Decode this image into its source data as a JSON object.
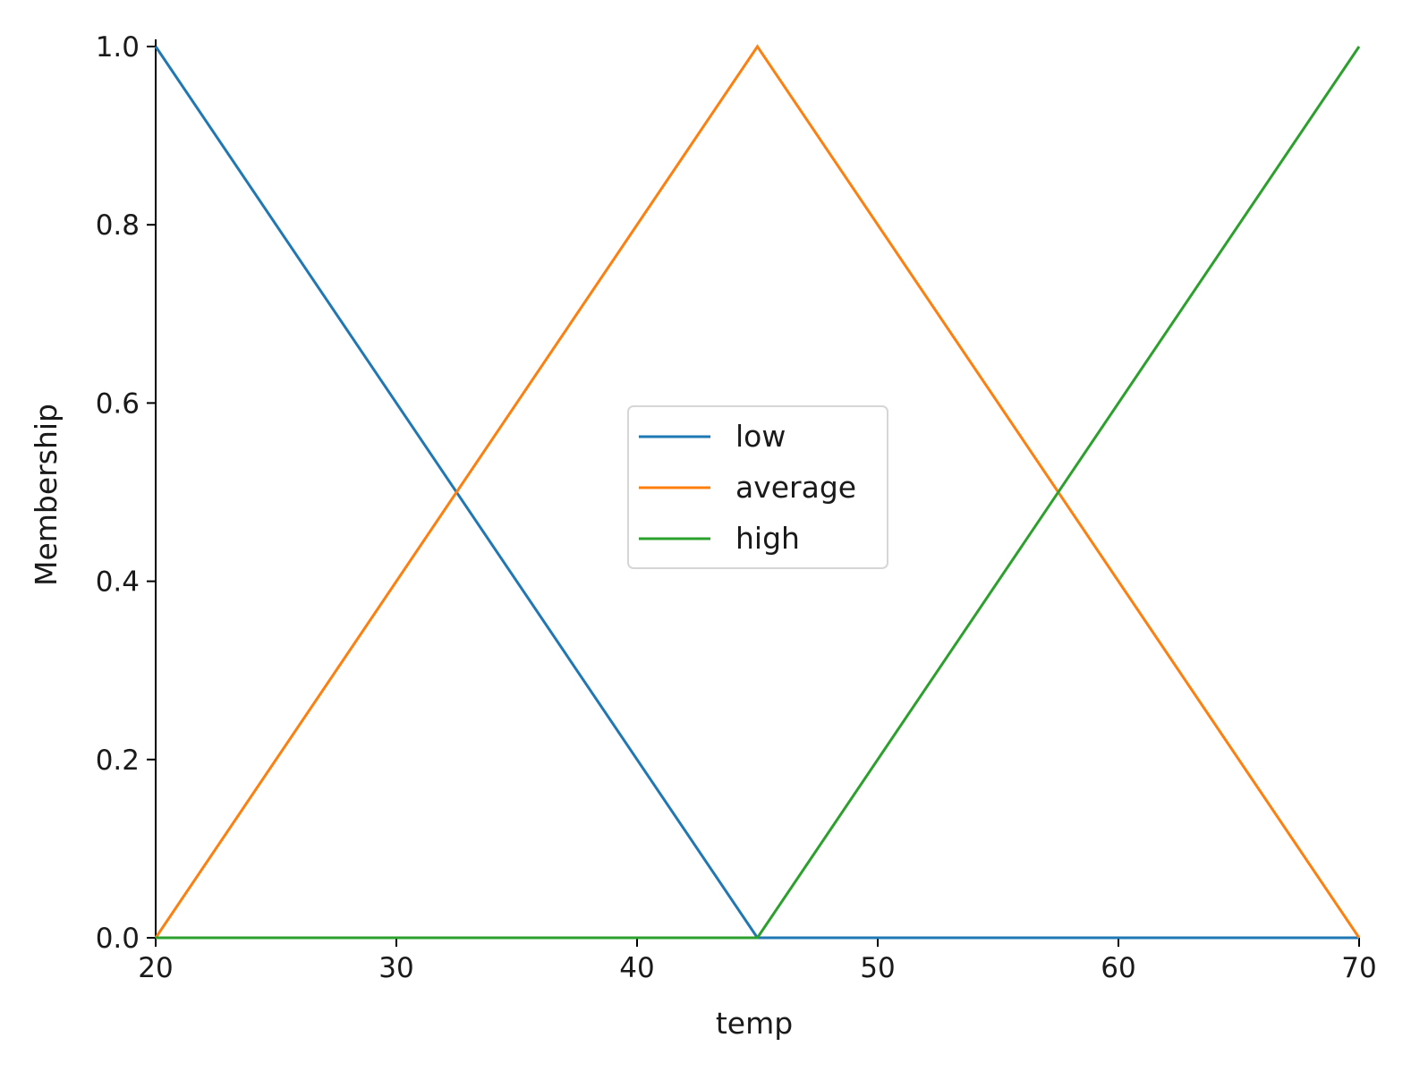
{
  "chart_data": {
    "type": "line",
    "title": "",
    "xlabel": "temp",
    "ylabel": "Membership",
    "xlim": [
      20,
      70
    ],
    "ylim": [
      0,
      1.0
    ],
    "x_ticks": [
      "20",
      "30",
      "40",
      "50",
      "60",
      "70"
    ],
    "y_ticks": [
      "0.0",
      "0.2",
      "0.4",
      "0.6",
      "0.8",
      "1.0"
    ],
    "grid": false,
    "legend_position": "center",
    "series": [
      {
        "name": "low",
        "color": "#1f77b4",
        "x": [
          20,
          45,
          70
        ],
        "y": [
          1.0,
          0.0,
          0.0
        ]
      },
      {
        "name": "average",
        "color": "#ff7f0e",
        "x": [
          20,
          45,
          70
        ],
        "y": [
          0.0,
          1.0,
          0.0
        ]
      },
      {
        "name": "high",
        "color": "#2ca02c",
        "x": [
          20,
          45,
          70
        ],
        "y": [
          0.0,
          0.0,
          1.0
        ]
      }
    ]
  }
}
